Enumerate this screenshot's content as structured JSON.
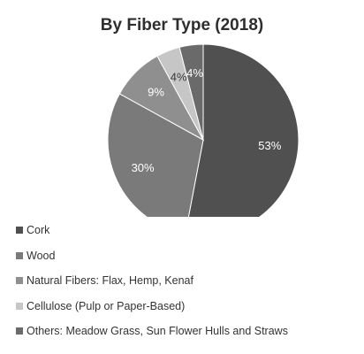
{
  "chart_data": {
    "type": "pie",
    "title": "By Fiber Type (2018)",
    "series": [
      {
        "name": "Cork",
        "value": 53,
        "label": "53%",
        "color": "#505050",
        "label_color": "#ffffff"
      },
      {
        "name": "Wood",
        "value": 30,
        "label": "30%",
        "color": "#7a7a7a",
        "label_color": "#ffffff"
      },
      {
        "name": "Natural Fibers: Flax, Hemp, Kenaf",
        "value": 9,
        "label": "9%",
        "color": "#8f8f8f",
        "label_color": "#ffffff"
      },
      {
        "name": "Cellulose (Pulp or Paper-Based)",
        "value": 4,
        "label": "4%",
        "color": "#c6c6c6",
        "label_color": "#3a3a3a"
      },
      {
        "name": "Others: Meadow Grass, Sun Flower Hulls and Straws",
        "value": 4,
        "label": "4%",
        "color": "#6a6a6a",
        "label_color": "#ffffff"
      }
    ],
    "legend_position": "bottom-left"
  }
}
